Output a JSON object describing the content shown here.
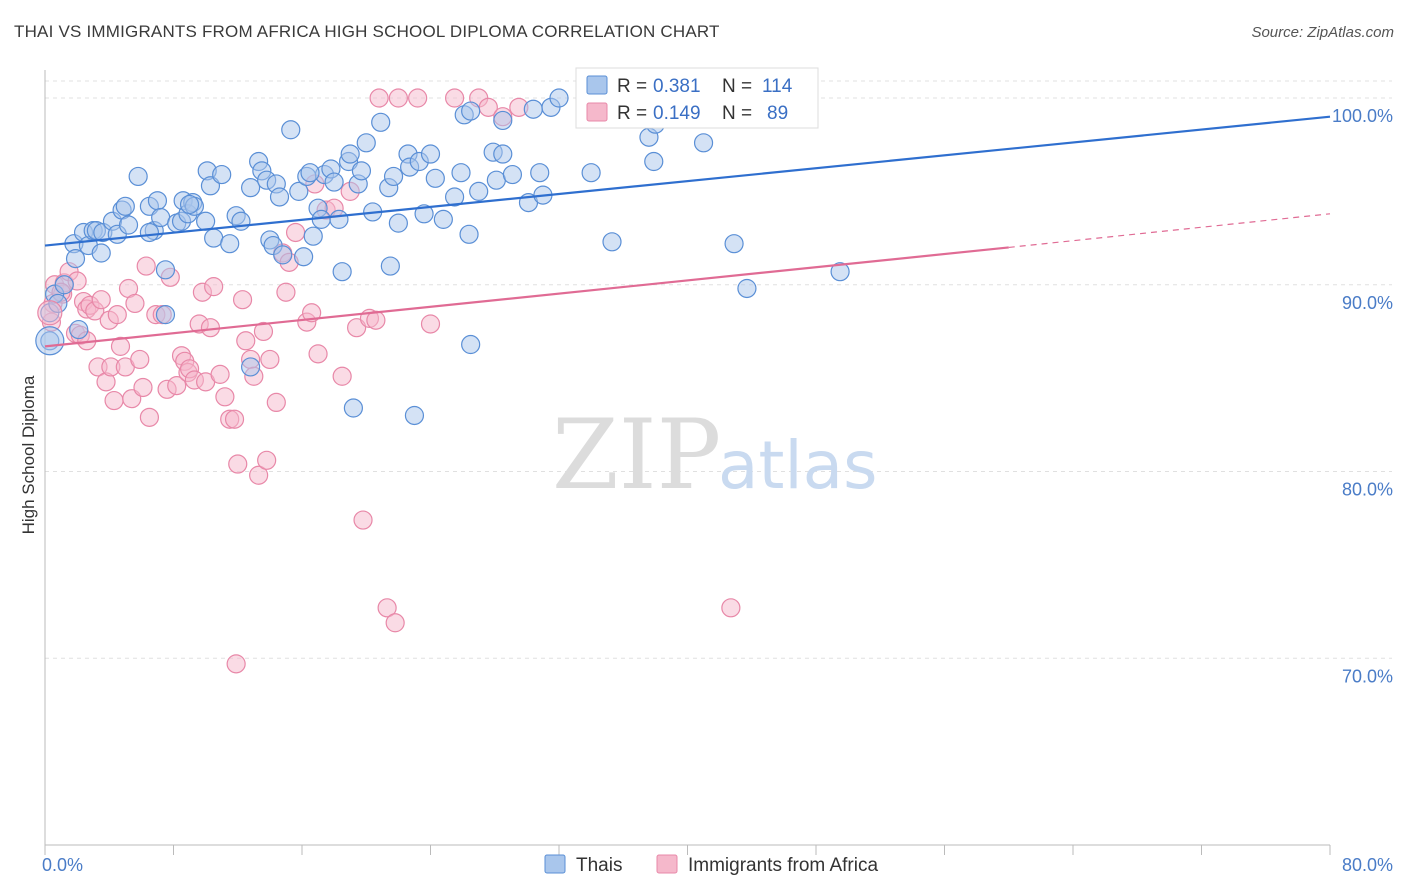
{
  "title": "THAI VS IMMIGRANTS FROM AFRICA HIGH SCHOOL DIPLOMA CORRELATION CHART",
  "source": "Source: ZipAtlas.com",
  "watermark": {
    "zip": "ZIP",
    "atlas": "atlas"
  },
  "colors": {
    "thais_fill": "#a9c6ec",
    "thais_stroke": "#5a8fd6",
    "thais_line": "#2f6fcf",
    "africa_fill": "#f5b8cb",
    "africa_stroke": "#e888a8",
    "africa_line": "#e06b94",
    "grid": "#e0e0e0",
    "axis_label": "#4a7cc7"
  },
  "chart_data": {
    "type": "scatter",
    "xlabel": "",
    "ylabel": "High School Diploma",
    "xlim": [
      0,
      80
    ],
    "ylim": [
      60,
      101.5
    ],
    "x_tick_labels": [
      "0.0%",
      "80.0%"
    ],
    "y_tick_labels": [
      {
        "value": 70,
        "label": "70.0%"
      },
      {
        "value": 80,
        "label": "80.0%"
      },
      {
        "value": 90,
        "label": "90.0%"
      },
      {
        "value": 100,
        "label": "100.0%"
      }
    ],
    "grid": true,
    "legend_position": "top",
    "legend": [
      {
        "name": "Thais",
        "R": "0.381",
        "N": "114"
      },
      {
        "name": "Immigrants from Africa",
        "R": "0.149",
        "N": "89"
      }
    ],
    "series": [
      {
        "name": "Thais",
        "trend": {
          "x0": 0,
          "y0": 92.1,
          "x1": 80,
          "y1": 99.0
        },
        "points": [
          [
            0.3,
            88.5
          ],
          [
            0.3,
            87.0
          ],
          [
            0.6,
            89.5
          ],
          [
            0.8,
            89.0
          ],
          [
            1.2,
            90.0
          ],
          [
            1.8,
            92.2
          ],
          [
            1.9,
            91.4
          ],
          [
            2.1,
            87.6
          ],
          [
            2.4,
            92.8
          ],
          [
            2.7,
            92.1
          ],
          [
            3.0,
            92.9
          ],
          [
            3.2,
            92.9
          ],
          [
            3.5,
            91.7
          ],
          [
            3.6,
            92.8
          ],
          [
            4.2,
            93.4
          ],
          [
            4.5,
            92.7
          ],
          [
            4.8,
            94.0
          ],
          [
            5.0,
            94.2
          ],
          [
            5.2,
            93.2
          ],
          [
            5.8,
            95.8
          ],
          [
            6.5,
            94.2
          ],
          [
            6.8,
            92.9
          ],
          [
            7.0,
            94.5
          ],
          [
            7.2,
            93.6
          ],
          [
            7.5,
            90.8
          ],
          [
            7.5,
            88.4
          ],
          [
            8.2,
            93.3
          ],
          [
            8.5,
            93.4
          ],
          [
            8.6,
            94.5
          ],
          [
            8.9,
            93.8
          ],
          [
            9.2,
            94.4
          ],
          [
            9.3,
            94.2
          ],
          [
            10.0,
            93.4
          ],
          [
            10.1,
            96.1
          ],
          [
            10.3,
            95.3
          ],
          [
            10.5,
            92.5
          ],
          [
            11.0,
            95.9
          ],
          [
            11.5,
            92.2
          ],
          [
            11.9,
            93.7
          ],
          [
            12.2,
            93.4
          ],
          [
            12.8,
            95.2
          ],
          [
            12.8,
            85.6
          ],
          [
            13.3,
            96.6
          ],
          [
            13.5,
            96.1
          ],
          [
            13.8,
            95.6
          ],
          [
            14.0,
            92.4
          ],
          [
            14.2,
            92.1
          ],
          [
            14.4,
            95.4
          ],
          [
            14.6,
            94.7
          ],
          [
            14.8,
            91.6
          ],
          [
            15.3,
            98.3
          ],
          [
            15.8,
            95.0
          ],
          [
            16.1,
            91.5
          ],
          [
            16.3,
            95.8
          ],
          [
            16.7,
            92.6
          ],
          [
            17.0,
            94.1
          ],
          [
            17.2,
            93.5
          ],
          [
            17.4,
            95.9
          ],
          [
            17.8,
            96.2
          ],
          [
            18.0,
            95.5
          ],
          [
            18.3,
            93.5
          ],
          [
            18.5,
            90.7
          ],
          [
            18.9,
            96.6
          ],
          [
            19.0,
            97.0
          ],
          [
            19.2,
            83.4
          ],
          [
            19.5,
            95.4
          ],
          [
            19.7,
            96.1
          ],
          [
            20.0,
            97.6
          ],
          [
            20.4,
            93.9
          ],
          [
            20.9,
            98.7
          ],
          [
            21.4,
            95.2
          ],
          [
            21.5,
            91.0
          ],
          [
            21.7,
            95.8
          ],
          [
            22.0,
            93.3
          ],
          [
            22.6,
            97.0
          ],
          [
            22.7,
            96.3
          ],
          [
            23.0,
            83.0
          ],
          [
            23.3,
            96.6
          ],
          [
            23.6,
            93.8
          ],
          [
            24.0,
            97.0
          ],
          [
            24.3,
            95.7
          ],
          [
            24.8,
            93.5
          ],
          [
            25.5,
            94.7
          ],
          [
            25.9,
            96.0
          ],
          [
            26.1,
            99.1
          ],
          [
            26.4,
            92.7
          ],
          [
            26.5,
            99.3
          ],
          [
            26.5,
            86.8
          ],
          [
            27.0,
            95.0
          ],
          [
            27.9,
            97.1
          ],
          [
            28.1,
            95.6
          ],
          [
            28.5,
            98.8
          ],
          [
            29.1,
            95.9
          ],
          [
            30.1,
            94.4
          ],
          [
            30.4,
            99.4
          ],
          [
            30.8,
            96.0
          ],
          [
            31.0,
            94.8
          ],
          [
            31.5,
            99.5
          ],
          [
            32.0,
            100.0
          ],
          [
            34.0,
            96.0
          ],
          [
            34.5,
            99.8
          ],
          [
            35.3,
            92.3
          ],
          [
            37.6,
            97.9
          ],
          [
            38.0,
            98.6
          ],
          [
            37.9,
            96.6
          ],
          [
            39.5,
            100.0
          ],
          [
            41.0,
            97.6
          ],
          [
            42.9,
            92.2
          ],
          [
            43.7,
            89.8
          ],
          [
            49.5,
            90.7
          ],
          [
            28.5,
            97.0
          ],
          [
            9.0,
            94.3
          ],
          [
            6.5,
            92.8
          ],
          [
            16.5,
            96.0
          ]
        ]
      },
      {
        "name": "Immigrants from Africa",
        "trend": {
          "x0": 0,
          "y0": 86.7,
          "x1": 60,
          "y1": 92.0,
          "dash_to_x": 80,
          "dash_to_y": 93.8
        },
        "points": [
          [
            0.4,
            88.0
          ],
          [
            0.5,
            89.0
          ],
          [
            0.6,
            90.0
          ],
          [
            1.1,
            89.5
          ],
          [
            1.2,
            90.1
          ],
          [
            1.5,
            90.7
          ],
          [
            1.9,
            87.4
          ],
          [
            2.0,
            90.2
          ],
          [
            2.2,
            87.3
          ],
          [
            2.4,
            89.1
          ],
          [
            2.6,
            88.7
          ],
          [
            2.8,
            88.9
          ],
          [
            3.1,
            88.6
          ],
          [
            3.3,
            85.6
          ],
          [
            3.5,
            89.2
          ],
          [
            3.8,
            84.8
          ],
          [
            4.0,
            88.1
          ],
          [
            4.1,
            85.6
          ],
          [
            4.3,
            83.8
          ],
          [
            4.5,
            88.4
          ],
          [
            4.7,
            86.7
          ],
          [
            5.0,
            85.6
          ],
          [
            5.2,
            89.8
          ],
          [
            5.4,
            83.9
          ],
          [
            5.6,
            89.0
          ],
          [
            5.9,
            86.0
          ],
          [
            6.1,
            84.5
          ],
          [
            6.3,
            91.0
          ],
          [
            6.5,
            82.9
          ],
          [
            6.9,
            88.4
          ],
          [
            7.3,
            88.4
          ],
          [
            7.6,
            84.4
          ],
          [
            7.8,
            90.4
          ],
          [
            8.2,
            84.6
          ],
          [
            8.5,
            86.2
          ],
          [
            8.7,
            85.9
          ],
          [
            8.9,
            85.3
          ],
          [
            9.0,
            85.5
          ],
          [
            9.3,
            84.9
          ],
          [
            9.6,
            87.9
          ],
          [
            9.8,
            89.6
          ],
          [
            10.0,
            84.8
          ],
          [
            10.3,
            87.7
          ],
          [
            10.5,
            89.9
          ],
          [
            10.9,
            85.2
          ],
          [
            11.2,
            84.0
          ],
          [
            11.5,
            82.8
          ],
          [
            11.8,
            82.8
          ],
          [
            12.0,
            80.4
          ],
          [
            12.3,
            89.2
          ],
          [
            12.5,
            87.0
          ],
          [
            12.8,
            86.0
          ],
          [
            13.0,
            85.1
          ],
          [
            13.3,
            79.8
          ],
          [
            13.6,
            87.5
          ],
          [
            13.8,
            80.6
          ],
          [
            14.0,
            86.0
          ],
          [
            14.4,
            83.7
          ],
          [
            14.8,
            91.7
          ],
          [
            15.0,
            89.6
          ],
          [
            15.2,
            91.2
          ],
          [
            15.6,
            92.8
          ],
          [
            16.3,
            88.0
          ],
          [
            16.6,
            88.5
          ],
          [
            16.8,
            95.4
          ],
          [
            17.0,
            86.3
          ],
          [
            17.5,
            94.0
          ],
          [
            18.0,
            94.1
          ],
          [
            18.5,
            85.1
          ],
          [
            19.0,
            95.0
          ],
          [
            19.4,
            87.7
          ],
          [
            19.8,
            77.4
          ],
          [
            20.2,
            88.2
          ],
          [
            20.6,
            88.1
          ],
          [
            21.3,
            72.7
          ],
          [
            21.8,
            71.9
          ],
          [
            22.0,
            100.0
          ],
          [
            24.0,
            87.9
          ],
          [
            25.5,
            100.0
          ],
          [
            27.0,
            100.0
          ],
          [
            27.6,
            99.5
          ],
          [
            28.5,
            99.0
          ],
          [
            29.5,
            99.5
          ],
          [
            11.9,
            69.7
          ],
          [
            42.7,
            72.7
          ],
          [
            23.2,
            100.0
          ],
          [
            20.8,
            100.0
          ],
          [
            1.0,
            89.6
          ],
          [
            2.6,
            87.0
          ]
        ]
      }
    ]
  }
}
